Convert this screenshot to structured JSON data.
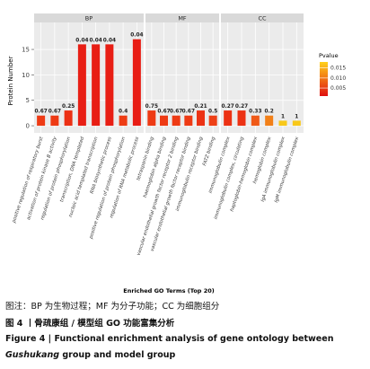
{
  "chart_data": {
    "type": "bar",
    "y_label": "Protein Number",
    "x_label": "Enriched GO Terms (Top 20)",
    "ylim": [
      -1.4,
      20.3
    ],
    "yticks": [
      0,
      5,
      10,
      15
    ],
    "facets": [
      {
        "title": "BP",
        "categories": [
          "positive regulation of respiratory burst",
          "activation of protein kinase B activity",
          "regulation of protein phosphorylation",
          "transcription, DNA templated",
          "nucleic acid templated transcription",
          "RNA biosynthetic process",
          "positive regulation of protein phosphorylation",
          "regulation of RNA metabolic process"
        ],
        "values": [
          2,
          2,
          3,
          16,
          16,
          16,
          2,
          17
        ],
        "bar_annotations": [
          "0.67",
          "0.67",
          "0.25",
          "0.04",
          "0.04",
          "0.04",
          "0.4",
          "0.04"
        ],
        "colors": [
          "#ee3a14",
          "#ee3a14",
          "#ec3014",
          "#e81e14",
          "#e81e14",
          "#e81e14",
          "#ee3c14",
          "#e81c14"
        ]
      },
      {
        "title": "MF",
        "categories": [
          "tetraspanin binding",
          "haemoglobin alpha binding",
          "vascular endothelial growth factor receptor 2 binding",
          "vascular endothelial growth factor receptor binding",
          "immunoglobulin receptor binding",
          "FATZ binding"
        ],
        "values": [
          3,
          2,
          2,
          2,
          3,
          2
        ],
        "bar_annotations": [
          "0.75",
          "0.67",
          "0.67",
          "0.67",
          "0.21",
          "0.5"
        ],
        "colors": [
          "#ee3a14",
          "#ee3a14",
          "#ee3a14",
          "#ee3a14",
          "#ec3214",
          "#ee4016"
        ]
      },
      {
        "title": "CC",
        "categories": [
          "immunoglobulin complex",
          "immunoglobulin complex, circulating",
          "haptoglobin-hemoglobin complex",
          "hemoglobin complex",
          "IgA immunoglobulin complex",
          "IgM immunoglobulin complex"
        ],
        "values": [
          3,
          3,
          2,
          2,
          1,
          1
        ],
        "bar_annotations": [
          "0.27",
          "0.27",
          "0.33",
          "0.2",
          "1",
          "1"
        ],
        "colors": [
          "#ec3214",
          "#ec3214",
          "#f05a18",
          "#f28018",
          "#f8c81a",
          "#f8c81a"
        ]
      }
    ],
    "legend": {
      "title": "Pvalue",
      "lim": [
        0.001,
        0.018
      ],
      "low_color": "#e01010",
      "high_color": "#ffd21a",
      "ticks": [
        0.005,
        {
          "value": 0.01,
          "label": "0.010"
        },
        0.015
      ]
    }
  },
  "caption": {
    "note": "图注：BP 为生物过程；MF 为分子功能；CC 为细胞组分",
    "title_cn": "图 4 丨骨疏康组 / 模型组 GO 功能富集分析",
    "title_en_1": "Figure 4  |  Functional enrichment analysis of gene ontology between",
    "title_en_2_italic": "Gushukang",
    "title_en_2_rest": " group and model group"
  }
}
